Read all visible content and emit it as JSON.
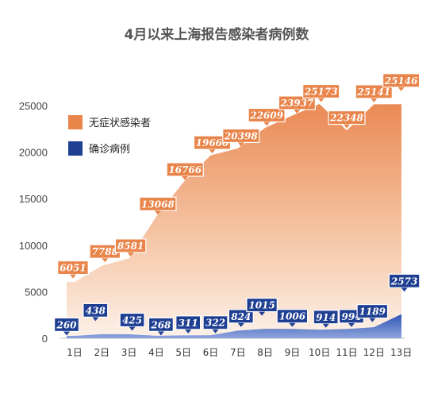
{
  "chart_data": {
    "type": "area",
    "title": "4月以来上海报告感染者病例数",
    "xlabel": "",
    "ylabel": "",
    "categories": [
      "1日",
      "2日",
      "3日",
      "4日",
      "5日",
      "6日",
      "7日",
      "8日",
      "9日",
      "10日",
      "11日",
      "12日",
      "13日"
    ],
    "ylim": [
      0,
      27000
    ],
    "yticks": [
      0,
      5000,
      10000,
      15000,
      20000,
      25000
    ],
    "grid": false,
    "legend_position": "top-left",
    "series": [
      {
        "name": "无症状感染者",
        "color": "#e9844a",
        "values": [
          6051,
          7788,
          8581,
          13068,
          16766,
          19660,
          20398,
          22609,
          23937,
          25173,
          22348,
          25141,
          25146
        ]
      },
      {
        "name": "确诊病例",
        "color": "#1f3f93",
        "values": [
          260,
          438,
          425,
          268,
          311,
          322,
          824,
          1015,
          1006,
          914,
          994,
          1189,
          2573
        ]
      }
    ]
  }
}
